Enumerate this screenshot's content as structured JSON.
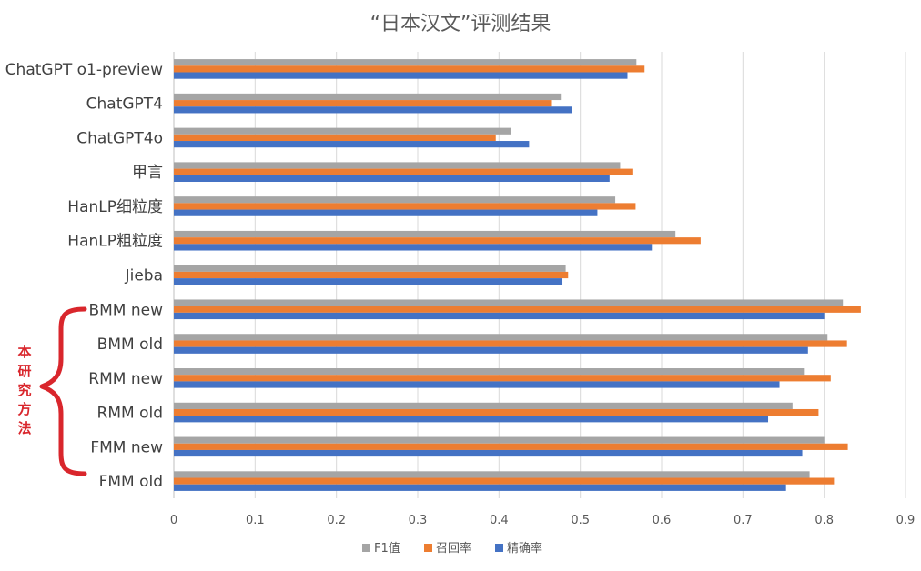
{
  "chart_data": {
    "type": "bar",
    "orientation": "horizontal",
    "title": "“日本汉文”评测结果",
    "categories": [
      "ChatGPT o1-preview",
      "ChatGPT4",
      "ChatGPT4o",
      "甲言",
      "HanLP细粒度",
      "HanLP粗粒度",
      "Jieba",
      "BMM new",
      "BMM old",
      "RMM new",
      "RMM old",
      "FMM new",
      "FMM old"
    ],
    "series": [
      {
        "name": "F1值",
        "color": "#a5a5a5",
        "values": [
          0.569,
          0.476,
          0.415,
          0.549,
          0.543,
          0.617,
          0.482,
          0.823,
          0.804,
          0.775,
          0.761,
          0.8,
          0.782
        ]
      },
      {
        "name": "召回率",
        "color": "#ed7d31",
        "values": [
          0.579,
          0.464,
          0.396,
          0.564,
          0.568,
          0.648,
          0.485,
          0.845,
          0.828,
          0.808,
          0.793,
          0.829,
          0.812
        ]
      },
      {
        "name": "精确率",
        "color": "#4472c4",
        "values": [
          0.558,
          0.49,
          0.437,
          0.536,
          0.521,
          0.588,
          0.478,
          0.8,
          0.78,
          0.745,
          0.731,
          0.773,
          0.753
        ]
      }
    ],
    "xlim": [
      0,
      0.9
    ],
    "xticks": [
      "0",
      "0.1",
      "0.2",
      "0.3",
      "0.4",
      "0.5",
      "0.6",
      "0.7",
      "0.8",
      "0.9"
    ],
    "xlabel": "",
    "ylabel": "",
    "grid": true,
    "legend": "bottom",
    "annotation": {
      "text": "本研究方法",
      "color": "#d9262c"
    }
  }
}
